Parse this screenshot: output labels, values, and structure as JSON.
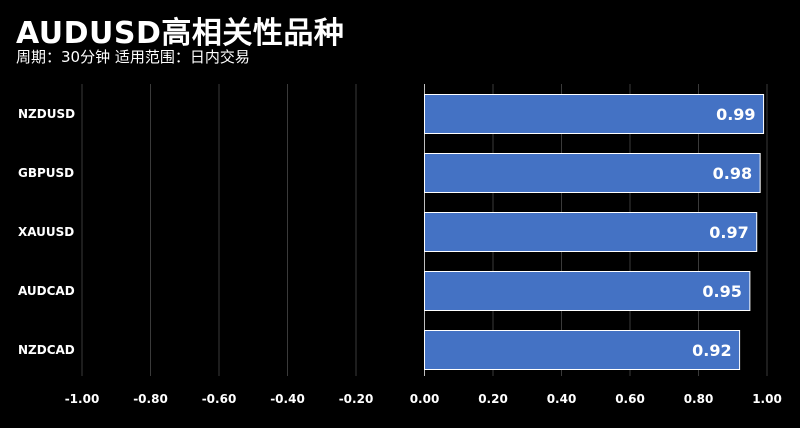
{
  "header": {
    "title": "AUDUSD高相关性品种",
    "subtitle": "周期：30分钟  适用范围：日内交易"
  },
  "chart_data": {
    "type": "bar",
    "orientation": "horizontal",
    "title": "AUDUSD高相关性品种",
    "subtitle": "周期：30分钟  适用范围：日内交易",
    "categories": [
      "NZDUSD",
      "GBPUSD",
      "XAUUSD",
      "AUDCAD",
      "NZDCAD"
    ],
    "values": [
      0.99,
      0.98,
      0.97,
      0.95,
      0.92
    ],
    "value_labels": [
      "0.99",
      "0.98",
      "0.97",
      "0.95",
      "0.92"
    ],
    "xlim": [
      -1.0,
      1.0
    ],
    "x_ticks": [
      -1.0,
      -0.8,
      -0.6,
      -0.4,
      -0.2,
      0.0,
      0.2,
      0.4,
      0.6,
      0.8,
      1.0
    ],
    "x_tick_labels": [
      "-1.00",
      "-0.80",
      "-0.60",
      "-0.40",
      "-0.20",
      "0.00",
      "0.20",
      "0.40",
      "0.60",
      "0.80",
      "1.00"
    ],
    "grid": "vertical",
    "xlabel": "",
    "ylabel": "",
    "colors": {
      "bar": "#4472C4",
      "bar_border": "#ffffff",
      "grid": "#3a3a3a",
      "zero_line": "#bfbfbf",
      "background": "#000000",
      "text": "#ffffff"
    }
  }
}
